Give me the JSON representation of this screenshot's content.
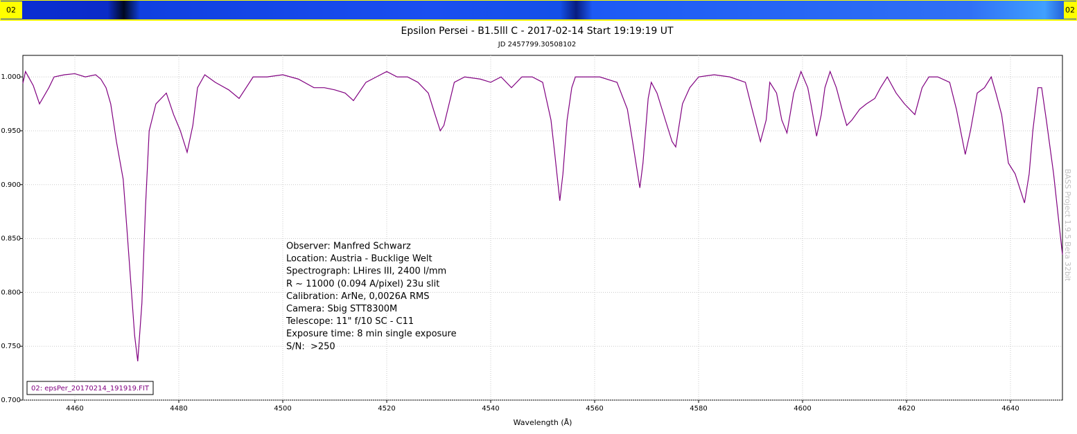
{
  "chart_data": {
    "type": "line",
    "title": "Epsilon Persei - B1.5lll C - 2017-02-14 Start 19:19:19 UT",
    "subtitle": "JD 2457799.30508102",
    "x_label": "Wavelength (Å)",
    "strip_labels": [
      "02",
      "02"
    ],
    "watermark": "BASS Project 1.9.5 Beta 32bit",
    "annotations": [
      "Observer: Manfred Schwarz",
      "Location: Austria - Bucklige Welt",
      "Spectrograph: LHires III, 2400 l/mm",
      "R ~ 11000 (0.094 A/pixel) 23u slit",
      "Calibration: ArNe, 0,0026A RMS",
      "Camera: Sbig STT8300M",
      "Telescope: 11\" f/10 SC - C11",
      "Exposure time: 8 min single exposure",
      "S/N:  >250"
    ],
    "x": [
      4450,
      4450.5,
      4452,
      4453.2,
      4455,
      4456,
      4458,
      4460,
      4462,
      4464,
      4465,
      4466,
      4466.9,
      4468,
      4469.3,
      4470,
      4470.9,
      4471.5,
      4472.1,
      4472.9,
      4473.6,
      4474.3,
      4475.6,
      4477.6,
      4479,
      4480.3,
      4481.6,
      4482.7,
      4483.6,
      4485,
      4487,
      4489.6,
      4491.6,
      4494.3,
      4497,
      4500,
      4503,
      4506,
      4508,
      4510,
      4512,
      4513.6,
      4516,
      4518,
      4520,
      4522,
      4524,
      4526,
      4528,
      4529.3,
      4530.3,
      4531,
      4532,
      4533,
      4535,
      4538,
      4540,
      4542,
      4544,
      4546,
      4548,
      4550,
      4551.6,
      4552.3,
      4553.3,
      4553.9,
      4554.7,
      4555.6,
      4556.3,
      4558,
      4561,
      4564.3,
      4566.3,
      4567.3,
      4568.7,
      4569.3,
      4570.3,
      4570.9,
      4572,
      4573.6,
      4574.9,
      4575.6,
      4576.9,
      4578.3,
      4580,
      4583,
      4586,
      4589,
      4590.3,
      4591.9,
      4593,
      4593.7,
      4595,
      4596,
      4597,
      4598.3,
      4599.7,
      4601,
      4601.6,
      4602.7,
      4603.6,
      4604.3,
      4605.3,
      4606.5,
      4607.6,
      4608.5,
      4609.5,
      4611,
      4612.3,
      4613.9,
      4615,
      4616.3,
      4618,
      4619.6,
      4621.6,
      4623,
      4624.3,
      4626,
      4628.3,
      4629.6,
      4631.3,
      4632.3,
      4633.6,
      4635,
      4636.3,
      4637.2,
      4638.3,
      4639.6,
      4640.9,
      4642.7,
      4643.6,
      4644.3,
      4645.3,
      4646,
      4646.9,
      4648.3,
      4649.2,
      4650
    ],
    "series": [
      {
        "name": "02: epsPer_20170214_191919.FIT",
        "color": "#800080",
        "values": [
          0.994,
          1.005,
          0.992,
          0.975,
          0.99,
          1.0,
          1.002,
          1.003,
          1.0,
          1.002,
          0.998,
          0.99,
          0.975,
          0.94,
          0.905,
          0.86,
          0.8,
          0.76,
          0.736,
          0.79,
          0.88,
          0.95,
          0.975,
          0.985,
          0.965,
          0.95,
          0.93,
          0.955,
          0.99,
          1.002,
          0.995,
          0.988,
          0.98,
          1.0,
          1.0,
          1.002,
          0.998,
          0.99,
          0.99,
          0.988,
          0.985,
          0.978,
          0.995,
          1.0,
          1.005,
          1.0,
          1.0,
          0.995,
          0.985,
          0.965,
          0.95,
          0.955,
          0.975,
          0.995,
          1.0,
          0.998,
          0.995,
          1.0,
          0.99,
          1.0,
          1.0,
          0.995,
          0.96,
          0.93,
          0.885,
          0.91,
          0.96,
          0.99,
          1.0,
          1.0,
          1.0,
          0.995,
          0.97,
          0.94,
          0.897,
          0.92,
          0.98,
          0.995,
          0.985,
          0.96,
          0.94,
          0.935,
          0.975,
          0.99,
          1.0,
          1.002,
          1.0,
          0.995,
          0.97,
          0.94,
          0.96,
          0.995,
          0.985,
          0.96,
          0.948,
          0.985,
          1.005,
          0.99,
          0.975,
          0.945,
          0.965,
          0.99,
          1.005,
          0.99,
          0.97,
          0.955,
          0.96,
          0.97,
          0.975,
          0.98,
          0.99,
          1.0,
          0.985,
          0.975,
          0.965,
          0.99,
          1.0,
          1.0,
          0.995,
          0.97,
          0.928,
          0.95,
          0.985,
          0.99,
          1.0,
          0.985,
          0.965,
          0.92,
          0.91,
          0.883,
          0.91,
          0.95,
          0.99,
          0.99,
          0.96,
          0.91,
          0.87,
          0.835
        ]
      }
    ],
    "xlim": [
      4450,
      4650
    ],
    "ylim": [
      0.7,
      1.02
    ],
    "xticks": [
      4460,
      4480,
      4500,
      4520,
      4540,
      4560,
      4580,
      4600,
      4620,
      4640
    ],
    "yticks": [
      {
        "value": 0.7,
        "label": "0.700"
      },
      {
        "value": 0.75,
        "label": "0.750"
      },
      {
        "value": 0.8,
        "label": "0.800"
      },
      {
        "value": 0.85,
        "label": "0.850"
      },
      {
        "value": 0.9,
        "label": "0.900"
      },
      {
        "value": 0.95,
        "label": "0.950"
      },
      {
        "value": 1.0,
        "label": "1.000"
      }
    ],
    "grid": true
  }
}
